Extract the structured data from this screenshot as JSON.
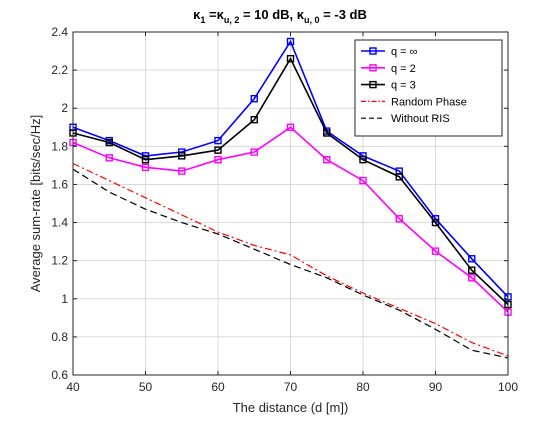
{
  "chart_data": {
    "type": "line",
    "title": {
      "kappa1": "κ",
      "sub1": "1",
      "mid1": "  =κ",
      "sub2": "u, 2",
      "mid2": " = 10 dB, κ",
      "sub3": "u, 0",
      "end": " = -3 dB"
    },
    "xlabel": "The distance (d [m])",
    "ylabel": "Average sum-rate [bits/sec/Hz]",
    "xlim": [
      40,
      100
    ],
    "ylim": [
      0.6,
      2.4
    ],
    "xticks": [
      40,
      50,
      60,
      70,
      80,
      90,
      100
    ],
    "yticks": [
      0.6,
      0.8,
      1,
      1.2,
      1.4,
      1.6,
      1.8,
      2,
      2.2,
      2.4
    ],
    "ytick_labels": [
      "0.6",
      "0.8",
      "1",
      "1.2",
      "1.4",
      "1.6",
      "1.8",
      "2",
      "2.2",
      "2.4"
    ],
    "grid": true,
    "legend_position": "top-right",
    "series": [
      {
        "name": "q = ∞",
        "color": "#0000ff",
        "marker": "square",
        "dash": "solid",
        "x": [
          40,
          45,
          50,
          55,
          60,
          65,
          70,
          75,
          80,
          85,
          90,
          95,
          100
        ],
        "values": [
          1.9,
          1.83,
          1.75,
          1.77,
          1.83,
          2.05,
          2.35,
          1.88,
          1.75,
          1.67,
          1.42,
          1.21,
          1.01
        ]
      },
      {
        "name": "q = 2",
        "color": "#ff00ff",
        "marker": "square",
        "dash": "solid",
        "x": [
          40,
          45,
          50,
          55,
          60,
          65,
          70,
          75,
          80,
          85,
          90,
          95,
          100
        ],
        "values": [
          1.82,
          1.74,
          1.69,
          1.67,
          1.73,
          1.77,
          1.9,
          1.73,
          1.62,
          1.42,
          1.25,
          1.11,
          0.93
        ]
      },
      {
        "name": "q = 3",
        "color": "#000000",
        "marker": "square",
        "dash": "solid",
        "x": [
          40,
          45,
          50,
          55,
          60,
          65,
          70,
          75,
          80,
          85,
          90,
          95,
          100
        ],
        "values": [
          1.87,
          1.82,
          1.73,
          1.75,
          1.78,
          1.94,
          2.26,
          1.87,
          1.73,
          1.64,
          1.4,
          1.15,
          0.97
        ]
      },
      {
        "name": "Random Phase",
        "color": "#ff0000",
        "marker": "none",
        "dash": "dashdot",
        "x": [
          40,
          45,
          50,
          55,
          60,
          65,
          70,
          75,
          80,
          85,
          90,
          95,
          100
        ],
        "values": [
          1.71,
          1.62,
          1.53,
          1.44,
          1.35,
          1.28,
          1.23,
          1.12,
          1.03,
          0.95,
          0.87,
          0.77,
          0.7
        ]
      },
      {
        "name": "Without RIS",
        "color": "#000000",
        "marker": "none",
        "dash": "dash",
        "x": [
          40,
          45,
          50,
          55,
          60,
          65,
          70,
          75,
          80,
          85,
          90,
          95,
          100
        ],
        "values": [
          1.68,
          1.56,
          1.47,
          1.4,
          1.34,
          1.26,
          1.18,
          1.11,
          1.02,
          0.94,
          0.84,
          0.73,
          0.69
        ]
      }
    ]
  }
}
